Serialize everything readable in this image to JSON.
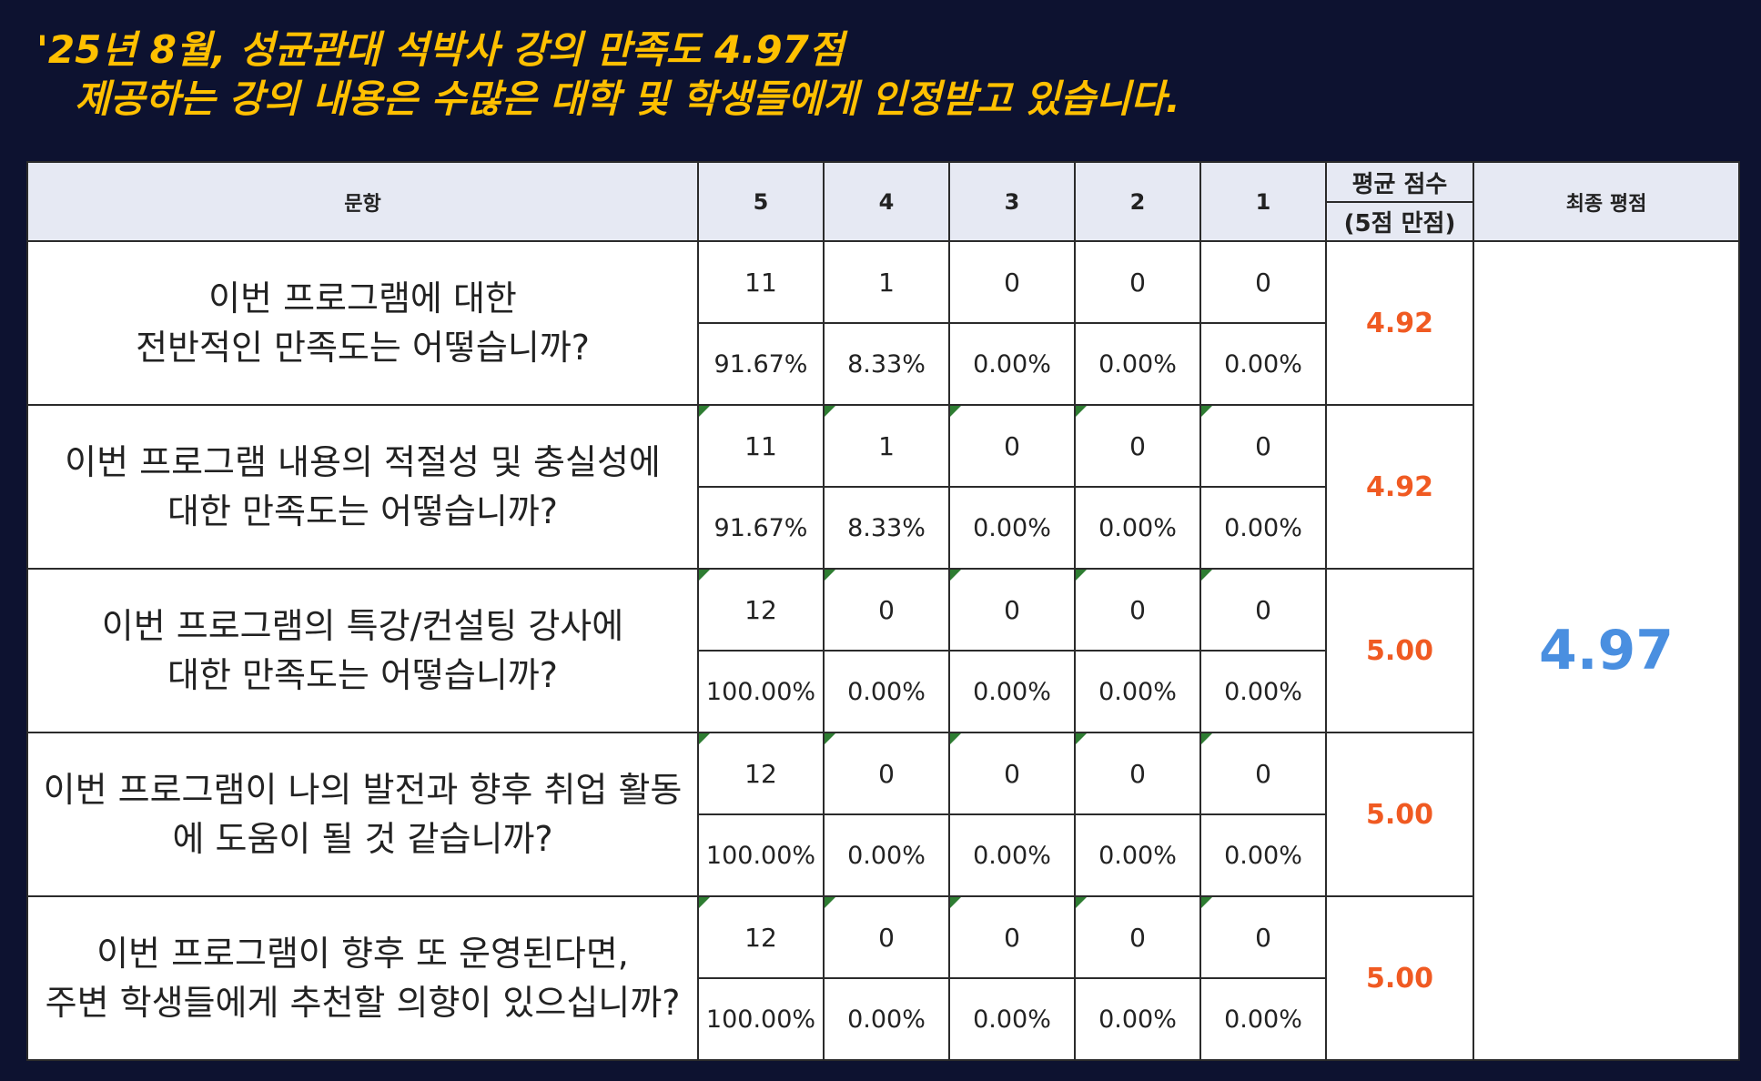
{
  "headline": {
    "line1": "'25년 8월, 성균관대 석박사 강의 만족도 4.97점",
    "line2": "제공하는 강의 내용은 수많은 대학 및 학생들에게 인정받고 있습니다."
  },
  "table": {
    "headers": {
      "question": "문항",
      "s5": "5",
      "s4": "4",
      "s3": "3",
      "s2": "2",
      "s1": "1",
      "avg_line1": "평균 점수",
      "avg_line2": "(5점 만점)",
      "final": "최종 평점"
    },
    "final_score": "4.97",
    "rows": [
      {
        "q1": "이번 프로그램에 대한",
        "q2": "전반적인 만족도는 어떻습니까?",
        "counts": [
          "11",
          "1",
          "0",
          "0",
          "0"
        ],
        "pcts": [
          "91.67%",
          "8.33%",
          "0.00%",
          "0.00%",
          "0.00%"
        ],
        "avg": "4.92"
      },
      {
        "q1": "이번 프로그램 내용의 적절성 및 충실성에",
        "q2": "대한 만족도는 어떻습니까?",
        "counts": [
          "11",
          "1",
          "0",
          "0",
          "0"
        ],
        "pcts": [
          "91.67%",
          "8.33%",
          "0.00%",
          "0.00%",
          "0.00%"
        ],
        "avg": "4.92"
      },
      {
        "q1": "이번 프로그램의 특강/컨설팅 강사에",
        "q2": "대한 만족도는 어떻습니까?",
        "counts": [
          "12",
          "0",
          "0",
          "0",
          "0"
        ],
        "pcts": [
          "100.00%",
          "0.00%",
          "0.00%",
          "0.00%",
          "0.00%"
        ],
        "avg": "5.00"
      },
      {
        "q1": "이번 프로그램이 나의 발전과 향후 취업 활동",
        "q2": "에 도움이 될 것 같습니까?",
        "counts": [
          "12",
          "0",
          "0",
          "0",
          "0"
        ],
        "pcts": [
          "100.00%",
          "0.00%",
          "0.00%",
          "0.00%",
          "0.00%"
        ],
        "avg": "5.00"
      },
      {
        "q1": "이번 프로그램이 향후 또 운영된다면,",
        "q2": "주변 학생들에게 추천할 의향이 있으십니까?",
        "counts": [
          "12",
          "0",
          "0",
          "0",
          "0"
        ],
        "pcts": [
          "100.00%",
          "0.00%",
          "0.00%",
          "0.00%",
          "0.00%"
        ],
        "avg": "5.00"
      }
    ]
  }
}
